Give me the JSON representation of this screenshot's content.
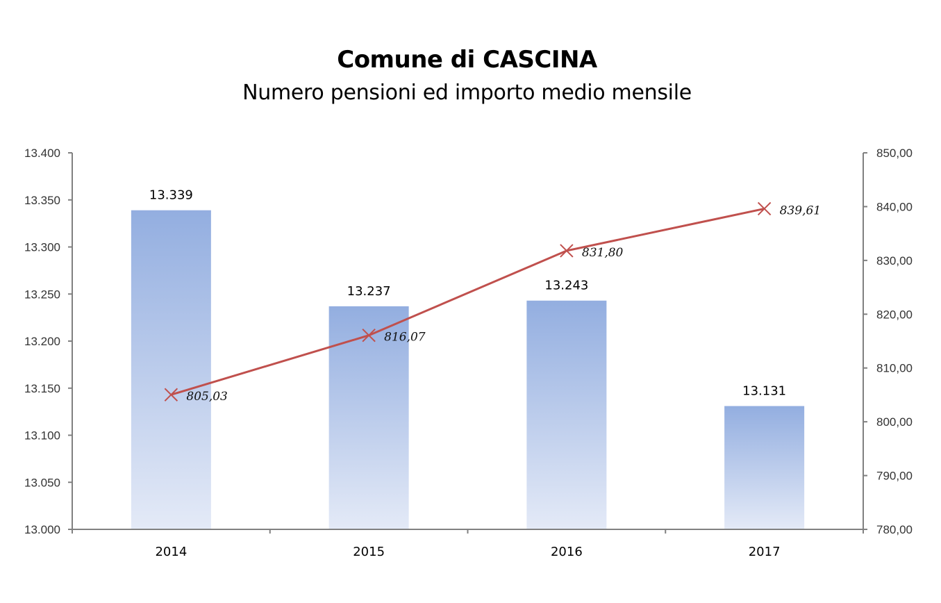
{
  "chart_data": {
    "type": "bar",
    "title": "Comune di CASCINA",
    "subtitle": "Numero pensioni ed importo medio mensile",
    "categories": [
      "2014",
      "2015",
      "2016",
      "2017"
    ],
    "series": [
      {
        "type": "bar",
        "axis": "left",
        "values": [
          13339,
          13237,
          13243,
          13131
        ],
        "labels": [
          "13.339",
          "13.237",
          "13.243",
          "13.131"
        ],
        "color": "#93AEE0"
      },
      {
        "type": "line",
        "axis": "right",
        "marker": "x",
        "values": [
          805.03,
          816.07,
          831.8,
          839.61
        ],
        "labels": [
          "805,03",
          "816,07",
          "831,80",
          "839,61"
        ],
        "color": "#C0504D"
      }
    ],
    "y_left": {
      "min": 13000,
      "max": 13400,
      "step": 50,
      "tick_labels": [
        "13.000",
        "13.050",
        "13.100",
        "13.150",
        "13.200",
        "13.250",
        "13.300",
        "13.350",
        "13.400"
      ]
    },
    "y_right": {
      "min": 780,
      "max": 850,
      "step": 10,
      "tick_labels": [
        "780,00",
        "790,00",
        "800,00",
        "810,00",
        "820,00",
        "830,00",
        "840,00",
        "850,00"
      ]
    },
    "grid": false,
    "legend": "none"
  }
}
